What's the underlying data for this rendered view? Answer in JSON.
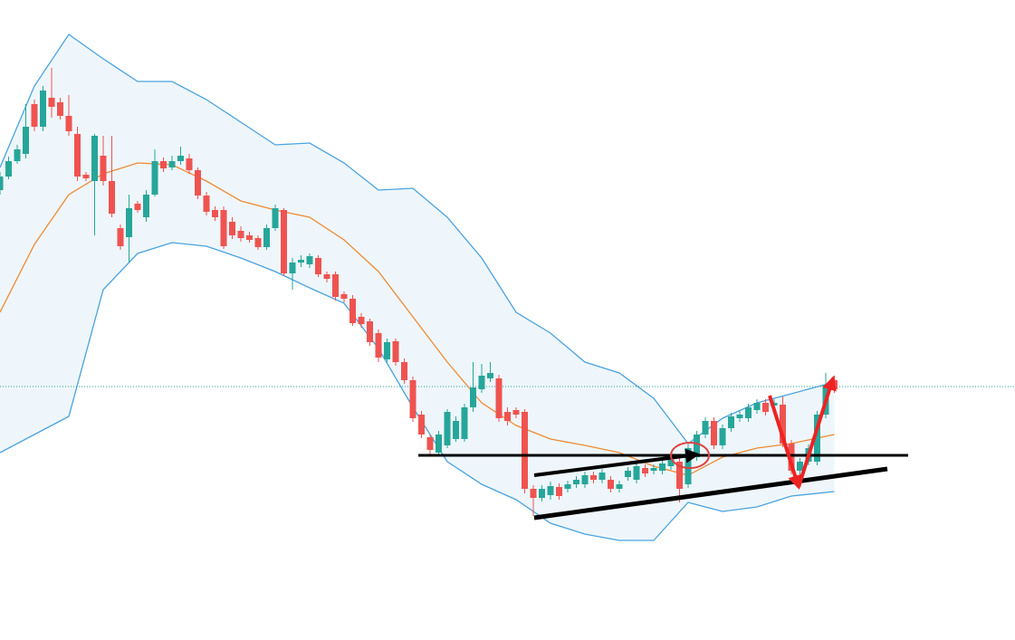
{
  "chart_data": {
    "type": "candlestick",
    "ylim": [
      0,
      700
    ],
    "up_color": "#26a69a",
    "down_color": "#ef5350",
    "price_line": 273,
    "price_line_color": "#26a69a",
    "candles": {
      "open": [
        490,
        505,
        522,
        530,
        585,
        560,
        592,
        587,
        572,
        552,
        507,
        500,
        528,
        500,
        448,
        438,
        475,
        460,
        485,
        522,
        515,
        522,
        525,
        512,
        484,
        468,
        468,
        455,
        445,
        440,
        437,
        427,
        448,
        468,
        398,
        410,
        408,
        415,
        397,
        397,
        375,
        370,
        350,
        345,
        332,
        303,
        323,
        300,
        280,
        242,
        217,
        200,
        208,
        215,
        215,
        250,
        270,
        282,
        282,
        245,
        247,
        245,
        160,
        150,
        153,
        162,
        160,
        165,
        165,
        175,
        170,
        170,
        160,
        173,
        170,
        183,
        180,
        180,
        185,
        190,
        165,
        195,
        220,
        235,
        208,
        227,
        238,
        238,
        247,
        255,
        252,
        253,
        210,
        180,
        190,
        190,
        242,
        280
      ],
      "high": [
        510,
        527,
        540,
        585,
        590,
        605,
        625,
        592,
        595,
        560,
        510,
        552,
        550,
        550,
        452,
        485,
        478,
        490,
        535,
        526,
        528,
        538,
        530,
        515,
        488,
        472,
        472,
        460,
        450,
        444,
        440,
        452,
        474,
        470,
        415,
        418,
        420,
        418,
        400,
        400,
        378,
        374,
        354,
        348,
        336,
        326,
        326,
        304,
        284,
        246,
        220,
        224,
        248,
        240,
        254,
        300,
        298,
        300,
        286,
        250,
        250,
        248,
        164,
        164,
        168,
        166,
        169,
        174,
        179,
        179,
        182,
        174,
        169,
        184,
        189,
        187,
        187,
        192,
        196,
        194,
        209,
        224,
        239,
        239,
        231,
        244,
        246,
        254,
        259,
        259,
        259,
        262,
        214,
        194,
        209,
        246,
        288,
        285
      ],
      "low": [
        485,
        502,
        519,
        525,
        555,
        555,
        570,
        568,
        550,
        500,
        500,
        440,
        495,
        460,
        424,
        410,
        465,
        455,
        483,
        510,
        512,
        518,
        508,
        480,
        462,
        456,
        425,
        436,
        433,
        432,
        424,
        424,
        445,
        395,
        380,
        405,
        404,
        394,
        388,
        368,
        366,
        340,
        338,
        318,
        300,
        300,
        296,
        276,
        234,
        216,
        198,
        197,
        205,
        212,
        212,
        245,
        266,
        278,
        234,
        230,
        238,
        155,
        130,
        146,
        148,
        148,
        156,
        161,
        161,
        166,
        166,
        156,
        156,
        169,
        166,
        173,
        176,
        176,
        181,
        145,
        161,
        191,
        216,
        204,
        204,
        223,
        234,
        234,
        243,
        241,
        248,
        206,
        176,
        176,
        186,
        186,
        238,
        266
      ],
      "close": [
        505,
        522,
        535,
        560,
        560,
        600,
        582,
        572,
        555,
        505,
        503,
        550,
        500,
        464,
        428,
        470,
        468,
        485,
        522,
        514,
        522,
        528,
        512,
        484,
        466,
        460,
        428,
        440,
        437,
        435,
        427,
        448,
        470,
        398,
        410,
        413,
        417,
        397,
        392,
        372,
        370,
        343,
        342,
        322,
        305,
        322,
        300,
        280,
        238,
        220,
        203,
        220,
        245,
        235,
        250,
        272,
        285,
        288,
        238,
        235,
        242,
        160,
        150,
        160,
        163,
        152,
        165,
        170,
        175,
        170,
        178,
        160,
        165,
        180,
        185,
        177,
        183,
        188,
        192,
        160,
        205,
        220,
        235,
        208,
        227,
        240,
        242,
        250,
        255,
        245,
        255,
        210,
        180,
        190,
        205,
        242,
        275,
        270
      ]
    },
    "bands": {
      "fill_color": "#eef6fb",
      "upper_color": "#4aa3e0",
      "middle_color": "#f08a33",
      "lower_color": "#4aa3e0",
      "x": [
        0,
        4,
        8,
        12,
        16,
        20,
        24,
        28,
        32,
        36,
        40,
        44,
        48,
        52,
        56,
        60,
        64,
        68,
        72,
        76,
        80,
        84,
        88,
        92,
        97
      ],
      "upper": [
        515,
        605,
        662,
        635,
        610,
        610,
        590,
        565,
        540,
        542,
        520,
        490,
        492,
        460,
        415,
        355,
        332,
        300,
        288,
        260,
        210,
        238,
        255,
        265,
        278
      ],
      "middle": [
        355,
        430,
        485,
        508,
        520,
        518,
        500,
        478,
        468,
        460,
        435,
        400,
        350,
        300,
        255,
        230,
        215,
        208,
        200,
        185,
        175,
        195,
        205,
        210,
        220
      ],
      "lower": [
        200,
        220,
        240,
        380,
        420,
        432,
        428,
        415,
        400,
        382,
        365,
        315,
        250,
        190,
        165,
        148,
        122,
        110,
        103,
        103,
        145,
        135,
        140,
        152,
        157
      ]
    }
  }
}
